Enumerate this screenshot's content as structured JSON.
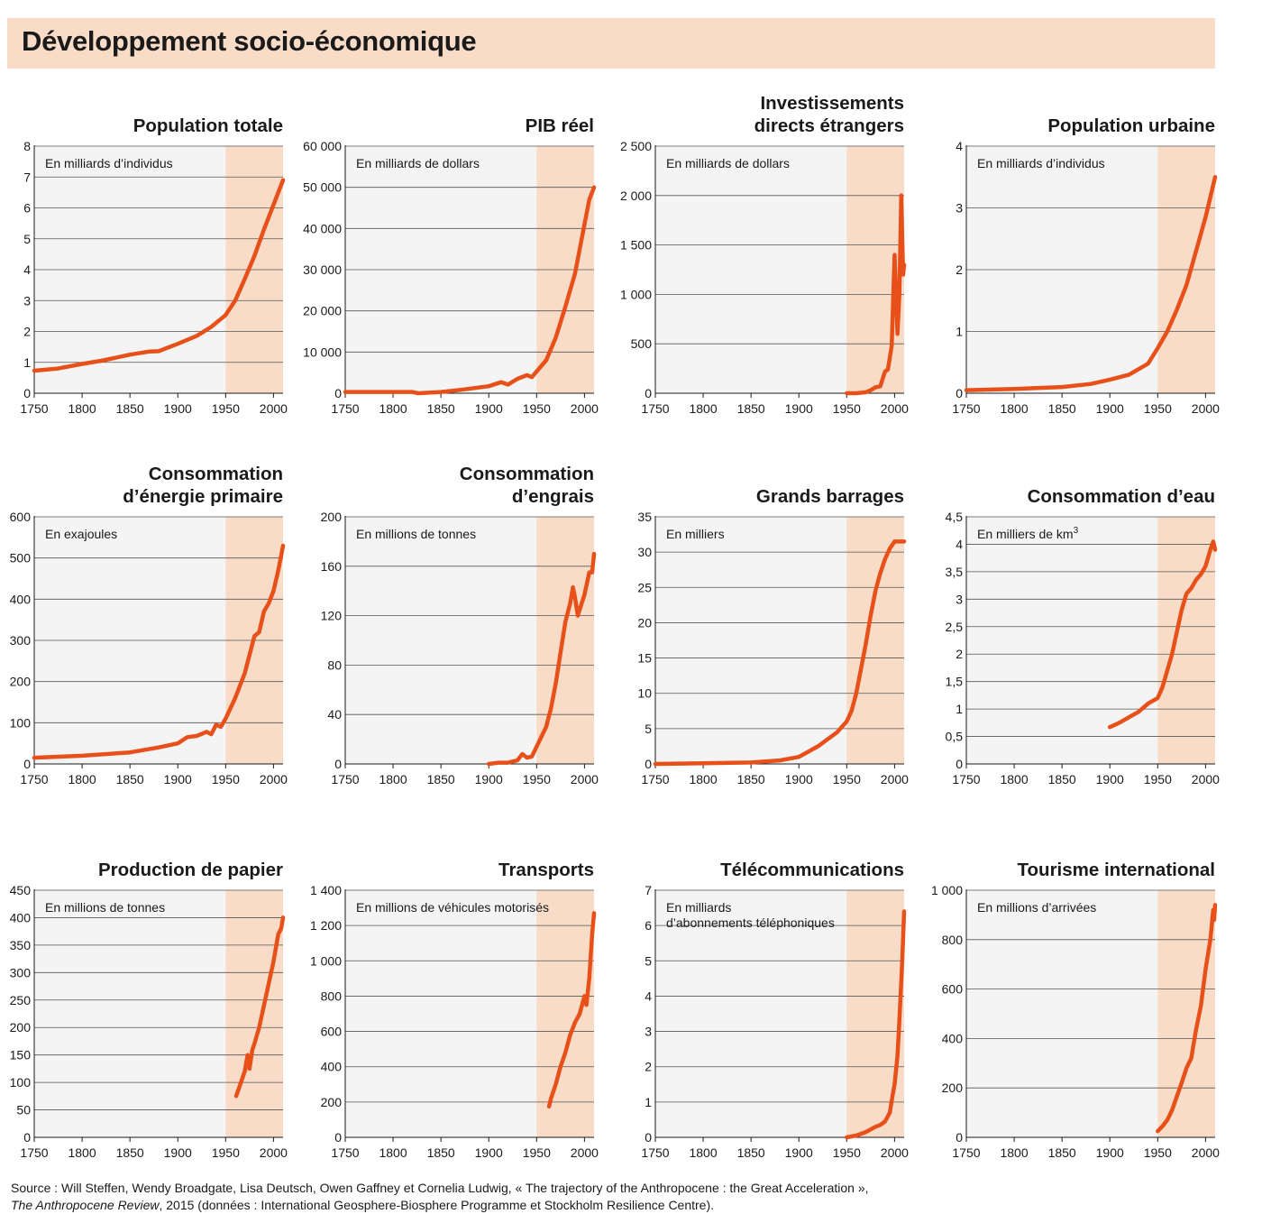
{
  "title": "Développement socio-économique",
  "source": {
    "line1": "Source : Will Steffen, Wendy Broadgate, Lisa Deutsch, Owen Gaffney et Cornelia Ludwig, « The trajectory of the Anthropocene : the Great Acceleration »,",
    "journal": "The Anthropocene Review",
    "line2_rest": ", 2015 (données : International Geosphere-Biosphere Programme et Stockholm Resilience Centre)."
  },
  "colors": {
    "line": "#e8501a",
    "shade_pre1950": "#f4f4f4",
    "shade_post1950": "#f9dcc8",
    "banner": "#f9dcc8",
    "grid": "#555555"
  },
  "chart_data": [
    {
      "type": "line",
      "title_lines": [
        "Population  totale"
      ],
      "unit": "En milliards d’individus",
      "xlim": [
        1750,
        2010
      ],
      "xticks": [
        1750,
        1800,
        1850,
        1900,
        1950,
        2000
      ],
      "ylim": [
        0,
        8
      ],
      "yticks": [
        0,
        1,
        2,
        3,
        4,
        5,
        6,
        7,
        8
      ],
      "ytick_labels": [
        "0",
        "1",
        "2",
        "3",
        "4",
        "5",
        "6",
        "7",
        "8"
      ],
      "x": [
        1750,
        1775,
        1800,
        1820,
        1850,
        1870,
        1880,
        1900,
        1920,
        1935,
        1950,
        1960,
        1970,
        1980,
        1990,
        2000,
        2010
      ],
      "y": [
        0.73,
        0.8,
        0.95,
        1.05,
        1.25,
        1.35,
        1.36,
        1.6,
        1.86,
        2.15,
        2.53,
        3.0,
        3.7,
        4.44,
        5.3,
        6.1,
        6.9
      ]
    },
    {
      "type": "line",
      "title_lines": [
        "PIB réel"
      ],
      "unit": "En milliards de dollars",
      "xlim": [
        1750,
        2010
      ],
      "xticks": [
        1750,
        1800,
        1850,
        1900,
        1950,
        2000
      ],
      "ylim": [
        0,
        60000
      ],
      "yticks": [
        0,
        10000,
        20000,
        30000,
        40000,
        50000,
        60000
      ],
      "ytick_labels": [
        "0",
        "10 000",
        "20 000",
        "30 000",
        "40 000",
        "50 000",
        "60 000"
      ],
      "x": [
        1750,
        1820,
        1826,
        1850,
        1870,
        1900,
        1913,
        1920,
        1930,
        1940,
        1945,
        1950,
        1960,
        1970,
        1980,
        1990,
        2000,
        2005,
        2010
      ],
      "y": [
        300,
        300,
        0,
        300,
        800,
        1700,
        2700,
        2100,
        3500,
        4400,
        3900,
        5300,
        8000,
        13500,
        21000,
        29000,
        41000,
        47000,
        50000
      ]
    },
    {
      "type": "line",
      "title_lines": [
        "Investissements",
        "directs étrangers"
      ],
      "unit": "En milliards de dollars",
      "xlim": [
        1750,
        2010
      ],
      "xticks": [
        1750,
        1800,
        1850,
        1900,
        1950,
        2000
      ],
      "ylim": [
        0,
        2500
      ],
      "yticks": [
        0,
        500,
        1000,
        1500,
        2000,
        2500
      ],
      "ytick_labels": [
        "0",
        "500",
        "1 000",
        "1 500",
        "2 000",
        "2 500"
      ],
      "x": [
        1950,
        1960,
        1970,
        1975,
        1980,
        1985,
        1990,
        1993,
        1997,
        2000,
        2003,
        2005,
        2007,
        2009,
        2010
      ],
      "y": [
        0,
        0,
        10,
        30,
        60,
        70,
        220,
        240,
        480,
        1400,
        600,
        1000,
        2000,
        1200,
        1300
      ]
    },
    {
      "type": "line",
      "title_lines": [
        "Population urbaine"
      ],
      "unit": "En milliards d’individus",
      "xlim": [
        1750,
        2010
      ],
      "xticks": [
        1750,
        1800,
        1850,
        1900,
        1950,
        2000
      ],
      "ylim": [
        0,
        4
      ],
      "yticks": [
        0,
        1,
        2,
        3,
        4
      ],
      "ytick_labels": [
        "0",
        "1",
        "2",
        "3",
        "4"
      ],
      "x": [
        1750,
        1800,
        1850,
        1880,
        1900,
        1920,
        1940,
        1950,
        1960,
        1970,
        1980,
        1990,
        2000,
        2010
      ],
      "y": [
        0.05,
        0.07,
        0.1,
        0.15,
        0.22,
        0.3,
        0.48,
        0.73,
        1.0,
        1.35,
        1.75,
        2.3,
        2.85,
        3.5
      ]
    },
    {
      "type": "line",
      "title_lines": [
        "Consommation",
        "d’énergie primaire"
      ],
      "unit": "En exajoules",
      "xlim": [
        1750,
        2010
      ],
      "xticks": [
        1750,
        1800,
        1850,
        1900,
        1950,
        2000
      ],
      "ylim": [
        0,
        600
      ],
      "yticks": [
        0,
        100,
        200,
        300,
        400,
        500,
        600
      ],
      "ytick_labels": [
        "0",
        "100",
        "200",
        "300",
        "400",
        "500",
        "600"
      ],
      "x": [
        1750,
        1800,
        1850,
        1880,
        1900,
        1910,
        1920,
        1930,
        1935,
        1940,
        1945,
        1950,
        1960,
        1970,
        1980,
        1985,
        1990,
        1995,
        2000,
        2005,
        2010
      ],
      "y": [
        15,
        20,
        28,
        40,
        50,
        65,
        68,
        78,
        72,
        95,
        90,
        110,
        160,
        220,
        310,
        320,
        370,
        390,
        420,
        470,
        530
      ]
    },
    {
      "type": "line",
      "title_lines": [
        "Consommation",
        "d’engrais"
      ],
      "unit": "En millions de tonnes",
      "xlim": [
        1750,
        2010
      ],
      "xticks": [
        1750,
        1800,
        1850,
        1900,
        1950,
        2000
      ],
      "ylim": [
        0,
        200
      ],
      "yticks": [
        0,
        40,
        80,
        120,
        160,
        200
      ],
      "ytick_labels": [
        "0",
        "40",
        "80",
        "120",
        "160",
        "200"
      ],
      "x": [
        1900,
        1910,
        1920,
        1930,
        1935,
        1940,
        1945,
        1950,
        1960,
        1965,
        1970,
        1975,
        1980,
        1985,
        1988,
        1990,
        1993,
        1995,
        2000,
        2005,
        2008,
        2010
      ],
      "y": [
        0,
        1,
        1,
        3,
        8,
        5,
        6,
        14,
        30,
        45,
        65,
        90,
        115,
        130,
        143,
        135,
        120,
        125,
        137,
        155,
        155,
        170
      ]
    },
    {
      "type": "line",
      "title_lines": [
        "Grands barrages"
      ],
      "unit": "En milliers",
      "xlim": [
        1750,
        2010
      ],
      "xticks": [
        1750,
        1800,
        1850,
        1900,
        1950,
        2000
      ],
      "ylim": [
        0,
        35
      ],
      "yticks": [
        0,
        5,
        10,
        15,
        20,
        25,
        30,
        35
      ],
      "ytick_labels": [
        "0",
        "5",
        "10",
        "15",
        "20",
        "25",
        "30",
        "35"
      ],
      "x": [
        1750,
        1800,
        1850,
        1880,
        1900,
        1920,
        1940,
        1950,
        1955,
        1960,
        1965,
        1970,
        1975,
        1980,
        1985,
        1990,
        1995,
        2000,
        2010
      ],
      "y": [
        0,
        0.1,
        0.2,
        0.5,
        1,
        2.5,
        4.5,
        6,
        7.5,
        10,
        13.5,
        17,
        21,
        24.5,
        27,
        29,
        30.5,
        31.5,
        31.5
      ]
    },
    {
      "type": "line",
      "title_lines": [
        "Consommation d’eau"
      ],
      "unit": "En milliers de km",
      "unit_sup": "3",
      "xlim": [
        1750,
        2010
      ],
      "xticks": [
        1750,
        1800,
        1850,
        1900,
        1950,
        2000
      ],
      "ylim": [
        0,
        4.5
      ],
      "yticks": [
        0,
        0.5,
        1,
        1.5,
        2,
        2.5,
        3,
        3.5,
        4,
        4.5
      ],
      "ytick_labels": [
        "0",
        "0,5",
        "1",
        "1,5",
        "2",
        "2,5",
        "3",
        "3,5",
        "4",
        "4,5"
      ],
      "x": [
        1900,
        1910,
        1920,
        1930,
        1940,
        1950,
        1955,
        1960,
        1965,
        1970,
        1975,
        1980,
        1985,
        1990,
        1995,
        2000,
        2005,
        2008,
        2010
      ],
      "y": [
        0.67,
        0.75,
        0.85,
        0.95,
        1.1,
        1.2,
        1.4,
        1.7,
        2.0,
        2.4,
        2.8,
        3.1,
        3.2,
        3.35,
        3.45,
        3.6,
        3.9,
        4.05,
        3.9
      ]
    },
    {
      "type": "line",
      "title_lines": [
        "Production  de papier"
      ],
      "unit": "En millions de tonnes",
      "xlim": [
        1750,
        2010
      ],
      "xticks": [
        1750,
        1800,
        1850,
        1900,
        1950,
        2000
      ],
      "ylim": [
        0,
        450
      ],
      "yticks": [
        0,
        50,
        100,
        150,
        200,
        250,
        300,
        350,
        400,
        450
      ],
      "ytick_labels": [
        "0",
        "50",
        "100",
        "150",
        "200",
        "250",
        "300",
        "350",
        "400",
        "450"
      ],
      "x": [
        1961,
        1965,
        1970,
        1973,
        1975,
        1978,
        1980,
        1985,
        1990,
        1995,
        2000,
        2005,
        2008,
        2010
      ],
      "y": [
        75,
        95,
        120,
        150,
        125,
        160,
        170,
        200,
        240,
        280,
        320,
        370,
        380,
        400
      ]
    },
    {
      "type": "line",
      "title_lines": [
        "Transports"
      ],
      "unit": "En millions de véhicules motorisés",
      "xlim": [
        1750,
        2010
      ],
      "xticks": [
        1750,
        1800,
        1850,
        1900,
        1950,
        2000
      ],
      "ylim": [
        0,
        1400
      ],
      "yticks": [
        0,
        200,
        400,
        600,
        800,
        1000,
        1200,
        1400
      ],
      "ytick_labels": [
        "0",
        "200",
        "400",
        "600",
        "800",
        "1 000",
        "1 200",
        "1 400"
      ],
      "x": [
        1963,
        1965,
        1970,
        1975,
        1980,
        1985,
        1990,
        1995,
        2000,
        2002,
        2005,
        2008,
        2010
      ],
      "y": [
        175,
        220,
        300,
        400,
        480,
        580,
        650,
        700,
        800,
        750,
        900,
        1150,
        1270
      ]
    },
    {
      "type": "line",
      "title_lines": [
        "Télécommunications"
      ],
      "unit_lines": [
        "En milliards",
        "d’abonnements téléphoniques"
      ],
      "xlim": [
        1750,
        2010
      ],
      "xticks": [
        1750,
        1800,
        1850,
        1900,
        1950,
        2000
      ],
      "ylim": [
        0,
        7
      ],
      "yticks": [
        0,
        1,
        2,
        3,
        4,
        5,
        6,
        7
      ],
      "ytick_labels": [
        "0",
        "1",
        "2",
        "3",
        "4",
        "5",
        "6",
        "7"
      ],
      "x": [
        1950,
        1960,
        1970,
        1980,
        1985,
        1990,
        1995,
        1998,
        2000,
        2003,
        2005,
        2008,
        2010
      ],
      "y": [
        0,
        0.05,
        0.15,
        0.3,
        0.35,
        0.45,
        0.7,
        1.2,
        1.5,
        2.3,
        3.3,
        5.0,
        6.4
      ]
    },
    {
      "type": "line",
      "title_lines": [
        "Tourisme international"
      ],
      "unit": "En millions d’arrivées",
      "xlim": [
        1750,
        2010
      ],
      "xticks": [
        1750,
        1800,
        1850,
        1900,
        1950,
        2000
      ],
      "ylim": [
        0,
        1000
      ],
      "yticks": [
        0,
        200,
        400,
        600,
        800,
        1000
      ],
      "ytick_labels": [
        "0",
        "200",
        "400",
        "600",
        "800",
        "1 000"
      ],
      "x": [
        1950,
        1955,
        1960,
        1965,
        1970,
        1975,
        1980,
        1985,
        1990,
        1995,
        2000,
        2005,
        2008,
        2009,
        2010
      ],
      "y": [
        25,
        45,
        70,
        110,
        165,
        220,
        280,
        320,
        435,
        530,
        680,
        800,
        920,
        880,
        940
      ]
    }
  ]
}
